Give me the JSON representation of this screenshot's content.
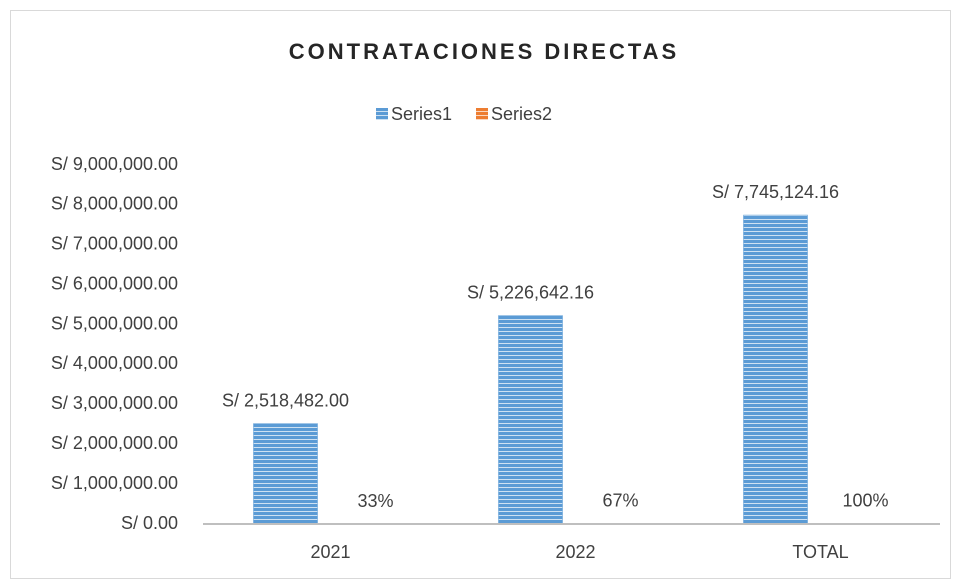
{
  "chart_data": {
    "type": "bar",
    "title": "CONTRATACIONES DIRECTAS",
    "categories": [
      "2021",
      "2022",
      "TOTAL"
    ],
    "series": [
      {
        "name": "Series1",
        "color": "#5b9bd5",
        "values": [
          2518482,
          5226642.16,
          7745124.16
        ],
        "value_labels": [
          "S/ 2,518,482.00",
          "S/ 5,226,642.16",
          "S/ 7,745,124.16"
        ]
      },
      {
        "name": "Series2",
        "color": "#ed7d31",
        "values": [
          0.33,
          0.67,
          1
        ],
        "value_labels": [
          "33%",
          "67%",
          "100%"
        ]
      }
    ],
    "ylim": [
      0,
      9000000
    ],
    "yticks": [
      {
        "value": 0,
        "label": "S/ 0.00"
      },
      {
        "value": 1000000,
        "label": "S/ 1,000,000.00"
      },
      {
        "value": 2000000,
        "label": "S/ 2,000,000.00"
      },
      {
        "value": 3000000,
        "label": "S/ 3,000,000.00"
      },
      {
        "value": 4000000,
        "label": "S/ 4,000,000.00"
      },
      {
        "value": 5000000,
        "label": "S/ 5,000,000.00"
      },
      {
        "value": 6000000,
        "label": "S/ 6,000,000.00"
      },
      {
        "value": 7000000,
        "label": "S/ 7,000,000.00"
      },
      {
        "value": 8000000,
        "label": "S/ 8,000,000.00"
      },
      {
        "value": 9000000,
        "label": "S/ 9,000,000.00"
      }
    ],
    "grid": false,
    "legend": "top"
  }
}
